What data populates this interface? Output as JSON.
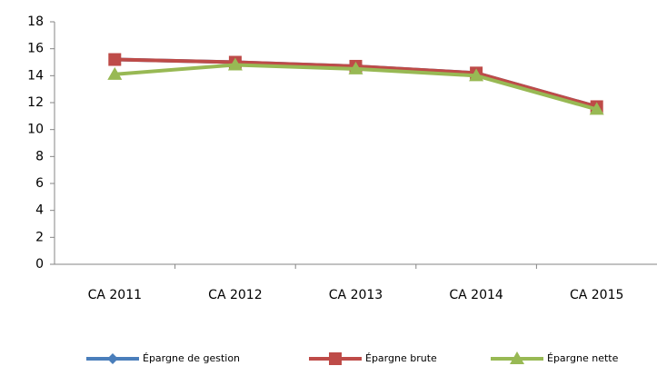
{
  "chart_data": {
    "type": "line",
    "categories": [
      "CA 2011",
      "CA 2012",
      "CA 2013",
      "CA 2014",
      "CA 2015"
    ],
    "series": [
      {
        "name": "Épargne de gestion",
        "color": "#4a7ebb",
        "marker": "diamond",
        "values": [
          15.2,
          15.0,
          14.7,
          14.2,
          11.7
        ]
      },
      {
        "name": "Épargne brute",
        "color": "#be4b48",
        "marker": "square",
        "values": [
          15.2,
          15.0,
          14.7,
          14.2,
          11.7
        ]
      },
      {
        "name": "Épargne nette",
        "color": "#98b954",
        "marker": "triangle",
        "values": [
          14.1,
          14.8,
          14.5,
          14.0,
          11.5
        ]
      }
    ],
    "ylim": [
      0,
      18
    ],
    "yticks": [
      0,
      2,
      4,
      6,
      8,
      10,
      12,
      14,
      16,
      18
    ],
    "grid": false,
    "legend": "bottom"
  }
}
